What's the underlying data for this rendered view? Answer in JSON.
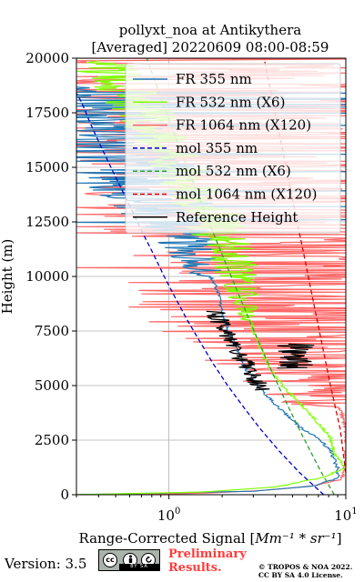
{
  "chart_data": {
    "type": "line",
    "title": "pollyxt_noa at Antikythera",
    "subtitle": "[Averaged] 20220609 08:00-08:59",
    "ylabel": "Height (m)",
    "xlabel_prefix": "Range-Corrected Signal [",
    "xlabel_math": "Mm⁻¹ * sr⁻¹",
    "xlabel_suffix": "]",
    "x_scale": "log",
    "xlim": [
      0.3,
      10
    ],
    "ylim": [
      0,
      20000
    ],
    "grid": true,
    "legend_position": "top-right",
    "x_tick_labels": [
      {
        "value": 1,
        "base": "10",
        "exp": "0"
      },
      {
        "value": 10,
        "base": "10",
        "exp": "1"
      }
    ],
    "y_ticks": [
      0,
      2500,
      5000,
      7500,
      10000,
      12500,
      15000,
      17500,
      20000
    ],
    "y_tick_labels": [
      "0",
      "2500",
      "5000",
      "7500",
      "10000",
      "12500",
      "15000",
      "17500",
      "20000"
    ],
    "series": [
      {
        "name": "FR 355 nm",
        "color": "#1f77b4",
        "style": "solid",
        "points": [
          [
            0.3,
            0
          ],
          [
            3.0,
            160
          ],
          [
            6.5,
            400
          ],
          [
            9.0,
            750
          ],
          [
            9.0,
            1200
          ],
          [
            8.2,
            2000
          ],
          [
            7.0,
            2600
          ],
          [
            5.5,
            3100
          ],
          [
            4.3,
            3900
          ],
          [
            3.4,
            4700
          ],
          [
            2.9,
            5400
          ],
          [
            2.6,
            6100
          ],
          [
            2.4,
            6800
          ],
          [
            2.2,
            7400
          ],
          [
            2.05,
            8100
          ],
          [
            1.95,
            8700
          ],
          [
            1.9,
            9300
          ],
          [
            1.75,
            9900
          ],
          [
            1.6,
            10400
          ],
          [
            1.42,
            11000
          ],
          [
            1.28,
            11600
          ],
          [
            1.15,
            12200
          ],
          [
            1.0,
            12800
          ],
          [
            0.9,
            13400
          ],
          [
            0.8,
            14000
          ],
          [
            0.7,
            14700
          ],
          [
            0.6,
            15400
          ],
          [
            0.52,
            16100
          ],
          [
            0.45,
            16900
          ],
          [
            0.38,
            17800
          ],
          [
            0.3,
            18700
          ]
        ]
      },
      {
        "name": "FR 532 nm (X6)",
        "color": "#7fff00",
        "style": "solid",
        "points": [
          [
            0.3,
            0
          ],
          [
            1.5,
            120
          ],
          [
            4.0,
            350
          ],
          [
            7.5,
            800
          ],
          [
            10,
            1250
          ],
          [
            8.6,
            1900
          ],
          [
            8.2,
            2600
          ],
          [
            6.8,
            3400
          ],
          [
            5.6,
            4100
          ],
          [
            4.4,
            5000
          ],
          [
            3.7,
            5800
          ],
          [
            3.4,
            6500
          ],
          [
            3.1,
            7200
          ],
          [
            2.9,
            7900
          ],
          [
            2.7,
            8600
          ],
          [
            2.55,
            9300
          ],
          [
            2.4,
            10000
          ],
          [
            2.3,
            10700
          ],
          [
            2.1,
            11400
          ],
          [
            1.95,
            12000
          ],
          [
            1.8,
            12600
          ],
          [
            1.6,
            13200
          ],
          [
            1.45,
            13800
          ],
          [
            1.3,
            14500
          ],
          [
            1.1,
            15300
          ],
          [
            0.95,
            16200
          ],
          [
            0.8,
            17100
          ],
          [
            0.65,
            18000
          ],
          [
            0.5,
            19000
          ],
          [
            0.4,
            19900
          ]
        ]
      },
      {
        "name": "FR 1064 nm (X120)",
        "color": "#ff6666",
        "style": "solid",
        "points": [
          [
            0.3,
            0
          ],
          [
            1.4,
            50
          ],
          [
            3.5,
            200
          ],
          [
            6.5,
            400
          ],
          [
            9.5,
            700
          ],
          [
            10,
            1500
          ],
          [
            10,
            3000
          ],
          [
            9.0,
            4400
          ],
          [
            8.0,
            5200
          ],
          [
            7.6,
            5900
          ],
          [
            7.0,
            6600
          ],
          [
            6.4,
            7500
          ],
          [
            5.8,
            8500
          ],
          [
            5.2,
            9500
          ],
          [
            4.6,
            10500
          ],
          [
            4.1,
            11500
          ],
          [
            3.6,
            12500
          ],
          [
            3.2,
            13500
          ],
          [
            2.8,
            14500
          ],
          [
            2.5,
            15500
          ],
          [
            2.2,
            16500
          ],
          [
            1.9,
            17500
          ],
          [
            1.7,
            18500
          ],
          [
            1.5,
            19500
          ],
          [
            1.4,
            20000
          ]
        ]
      },
      {
        "name": "mol 355 nm",
        "color": "#0000cc",
        "style": "dashed",
        "points": [
          [
            7.5,
            0
          ],
          [
            5.5,
            1000
          ],
          [
            4.2,
            2000
          ],
          [
            3.3,
            3000
          ],
          [
            2.65,
            4000
          ],
          [
            2.15,
            5000
          ],
          [
            1.78,
            6000
          ],
          [
            1.5,
            7000
          ],
          [
            1.27,
            8000
          ],
          [
            1.09,
            9000
          ],
          [
            0.94,
            10000
          ],
          [
            0.82,
            11000
          ],
          [
            0.71,
            12000
          ],
          [
            0.62,
            13000
          ],
          [
            0.54,
            14000
          ],
          [
            0.47,
            15000
          ],
          [
            0.41,
            16000
          ],
          [
            0.36,
            17000
          ],
          [
            0.32,
            18000
          ],
          [
            0.3,
            18400
          ]
        ]
      },
      {
        "name": "mol 532 nm (X6)",
        "color": "#2ca02c",
        "style": "dashed",
        "points": [
          [
            8.6,
            0
          ],
          [
            7.3,
            1000
          ],
          [
            6.3,
            2000
          ],
          [
            5.45,
            3000
          ],
          [
            4.75,
            4000
          ],
          [
            4.15,
            5000
          ],
          [
            3.65,
            6000
          ],
          [
            3.22,
            7000
          ],
          [
            2.85,
            8000
          ],
          [
            2.53,
            9000
          ],
          [
            2.25,
            10000
          ],
          [
            2.0,
            11000
          ],
          [
            1.78,
            12000
          ],
          [
            1.59,
            13000
          ],
          [
            1.42,
            14000
          ],
          [
            1.27,
            15000
          ],
          [
            1.14,
            16000
          ],
          [
            1.02,
            17000
          ],
          [
            0.92,
            18000
          ],
          [
            0.83,
            19000
          ],
          [
            0.75,
            20000
          ]
        ]
      },
      {
        "name": "mol 1064 nm (X120)",
        "color": "#dd0000",
        "style": "dashed",
        "points": [
          [
            10,
            1000
          ],
          [
            9.3,
            3000
          ],
          [
            8.2,
            5000
          ],
          [
            7.3,
            7000
          ],
          [
            6.5,
            9000
          ],
          [
            5.8,
            11000
          ],
          [
            5.15,
            13000
          ],
          [
            4.6,
            15000
          ],
          [
            4.1,
            17000
          ],
          [
            3.65,
            19000
          ],
          [
            3.45,
            20000
          ]
        ]
      },
      {
        "name": "Reference Height",
        "color": "#000000",
        "style": "solid",
        "points": [
          [
            1.82,
            8400
          ],
          [
            1.95,
            7900
          ],
          [
            2.1,
            7400
          ],
          [
            2.3,
            6900
          ],
          [
            2.55,
            6300
          ],
          [
            2.8,
            5800
          ],
          [
            3.05,
            5300
          ],
          [
            3.3,
            4800
          ]
        ]
      }
    ],
    "reference_band": {
      "series": "FR 1064 nm (X120)",
      "x_range": [
        4.0,
        6.8
      ],
      "y_range": [
        5800,
        6900
      ]
    }
  },
  "footer": {
    "version_text": "Version: 3.5",
    "license_badge_text": "BY SA",
    "license_icon_cc": "cc",
    "license_icon_by": "by-icon",
    "license_icon_sa": "sa-icon",
    "prelim_line1": "Preliminary",
    "prelim_line2": "Results.",
    "copyright_line1": "© TROPOS & NOA 2022.",
    "copyright_line2": "CC BY SA 4.0 License."
  }
}
